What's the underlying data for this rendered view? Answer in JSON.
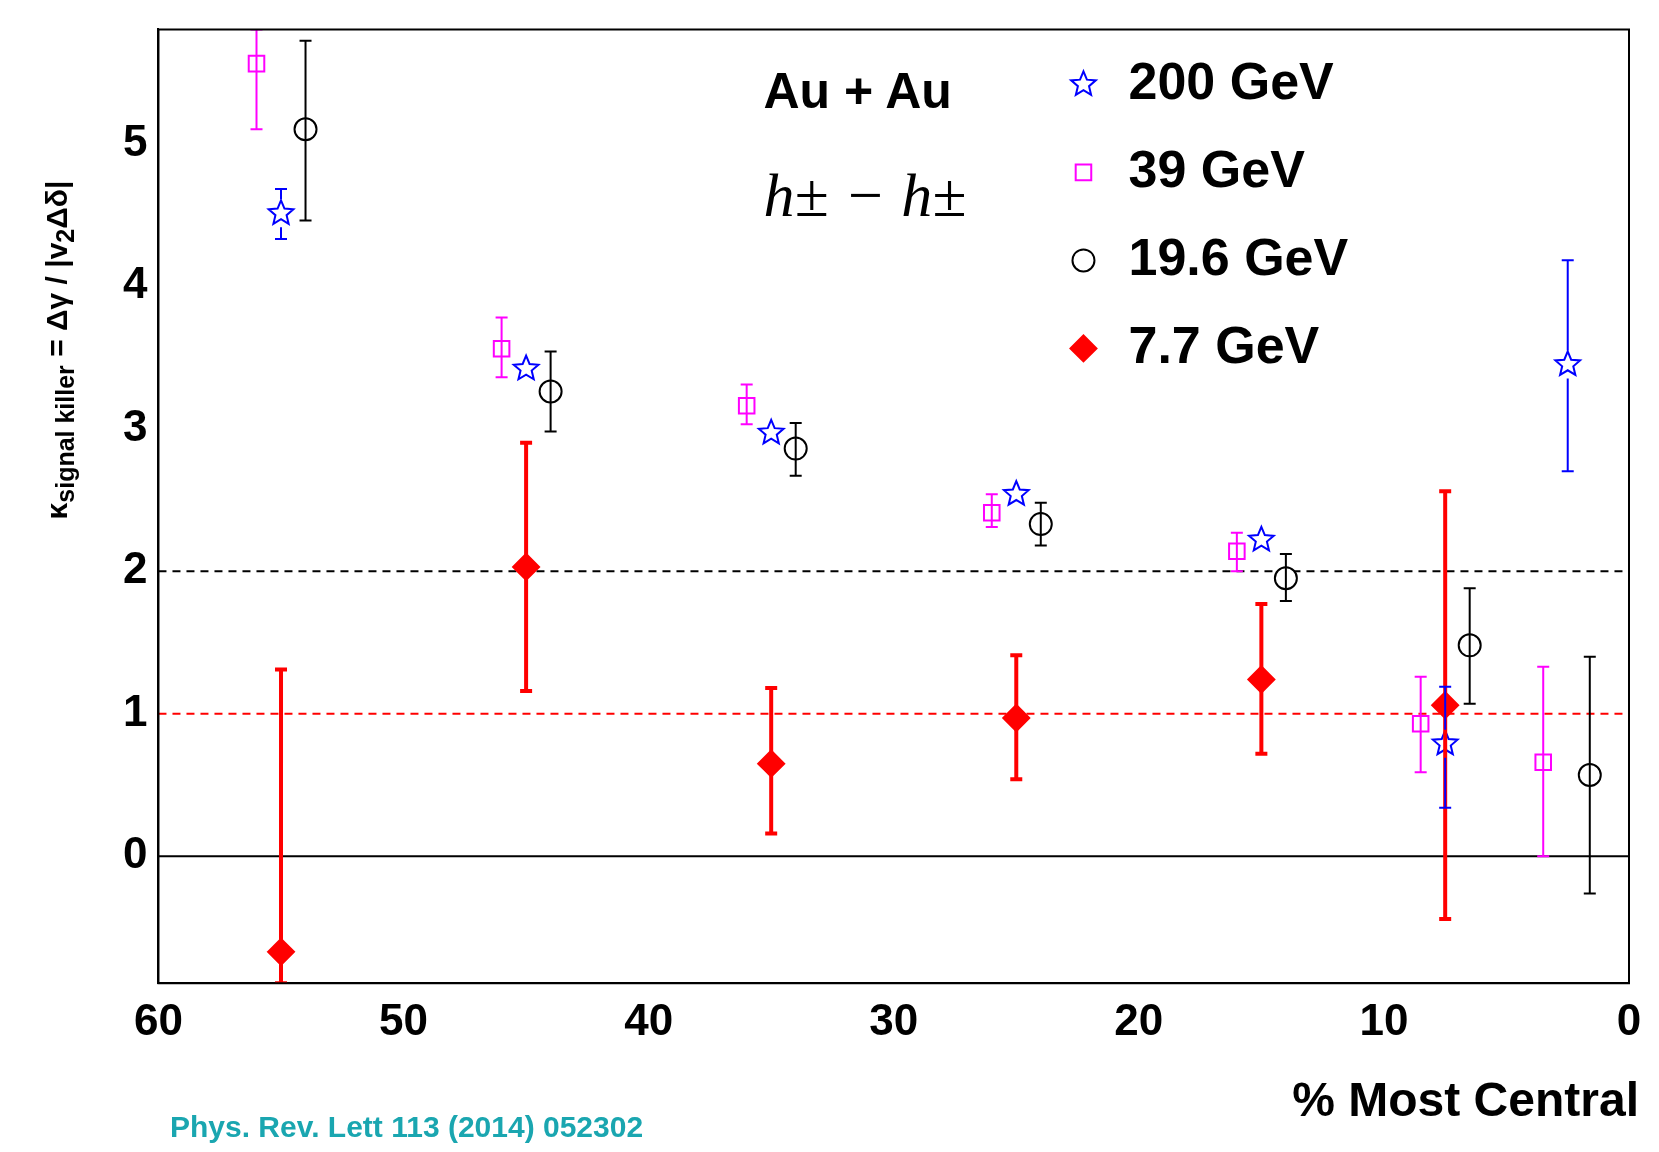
{
  "chart_data": {
    "type": "scatter",
    "xlabel": "% Most Central",
    "ylabel": "κ$_{signal killer}$ = Δγ / |v$_{2}$Δδ|",
    "xlim": [
      60,
      0
    ],
    "xticks": [
      60,
      50,
      40,
      30,
      20,
      10,
      0
    ],
    "ylim": [
      -0.89,
      5.8
    ],
    "yticks": [
      0,
      1,
      2,
      3,
      4,
      5
    ],
    "legend": "top right",
    "series": [
      {
        "name": "200 GeV",
        "color": "#0000ff",
        "marker": "star",
        "x": [
          55,
          45,
          35,
          25,
          15,
          7.5,
          2.5
        ],
        "values": [
          4.51,
          3.42,
          2.97,
          2.54,
          2.22,
          0.79,
          3.45
        ],
        "errors": [
          [
            4.33,
            4.68
          ],
          null,
          null,
          null,
          null,
          [
            0.34,
            1.19
          ],
          [
            2.7,
            4.18
          ]
        ]
      },
      {
        "name": "39 GeV",
        "color": "#ff00ff",
        "marker": "square",
        "x": [
          56,
          46,
          36,
          26,
          16,
          8.5,
          3.5
        ],
        "values": [
          5.56,
          3.56,
          3.16,
          2.41,
          2.14,
          0.93,
          0.66
        ],
        "errors": [
          [
            5.1,
            5.8
          ],
          [
            3.36,
            3.78
          ],
          [
            3.03,
            3.31
          ],
          [
            2.31,
            2.54
          ],
          [
            2.0,
            2.27
          ],
          [
            0.59,
            1.26
          ],
          [
            0,
            1.33
          ]
        ]
      },
      {
        "name": "19.6 GeV",
        "color": "#000000",
        "marker": "circle",
        "x": [
          54,
          44,
          34,
          24,
          14,
          6.5,
          1.6
        ],
        "values": [
          5.1,
          3.26,
          2.86,
          2.33,
          1.95,
          1.48,
          0.57
        ],
        "errors": [
          [
            4.46,
            5.72
          ],
          [
            2.98,
            3.54
          ],
          [
            2.67,
            3.04
          ],
          [
            2.18,
            2.48
          ],
          [
            1.79,
            2.12
          ],
          [
            1.07,
            1.88
          ],
          [
            -0.26,
            1.4
          ]
        ]
      },
      {
        "name": "7.7 GeV",
        "color": "#ff0000",
        "marker": "diamond",
        "x": [
          55,
          45,
          35,
          25,
          15,
          7.5
        ],
        "values": [
          -0.67,
          2.03,
          0.65,
          0.97,
          1.24,
          1.06
        ],
        "errors": [
          [
            -0.89,
            1.31
          ],
          [
            1.16,
            2.9
          ],
          [
            0.16,
            1.18
          ],
          [
            0.54,
            1.41
          ],
          [
            0.72,
            1.77
          ],
          [
            -0.44,
            2.56
          ]
        ]
      }
    ],
    "ref_lines": [
      {
        "axis": "y",
        "value": 2,
        "color": "#000000",
        "line_style": "dashed"
      },
      {
        "axis": "y",
        "value": 1,
        "color": "#ff0000",
        "line_style": "dashed"
      },
      {
        "axis": "y",
        "value": 0,
        "color": "#000000",
        "line_style": "solid"
      }
    ],
    "annotations": [
      "Au + Au",
      "h± − h±",
      "Phys. Rev. Lett 113 (2014) 052302"
    ]
  }
}
